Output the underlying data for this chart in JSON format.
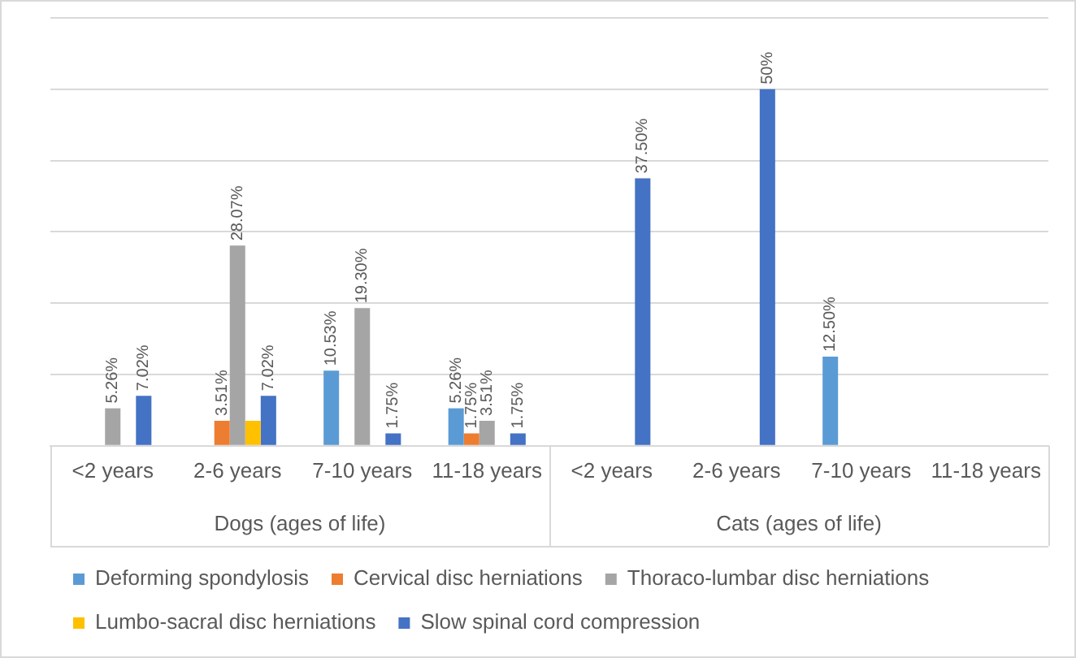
{
  "chart_data": {
    "type": "bar",
    "categories": [
      "<2 years",
      "2-6 years",
      "7-10 years",
      "11-18 years",
      "<2 years",
      "2-6 years",
      "7-10 years",
      "11-18 years"
    ],
    "annotations": [
      "Dogs (ages of life)",
      "Cats (ages of life)"
    ],
    "series": [
      {
        "name": "Deforming spondylosis",
        "color": "#5b9bd5",
        "values": [
          null,
          null,
          10.53,
          5.26,
          null,
          null,
          12.5,
          null
        ],
        "value_labels": [
          null,
          null,
          "10.53%",
          "5.26%",
          null,
          null,
          "12.50%",
          null
        ]
      },
      {
        "name": "Cervical disc herniations",
        "color": "#ed7d31",
        "values": [
          null,
          3.51,
          null,
          1.75,
          null,
          null,
          null,
          null
        ],
        "value_labels": [
          null,
          "3.51%",
          null,
          "1.75%",
          null,
          null,
          null,
          null
        ]
      },
      {
        "name": "Thoraco-lumbar disc herniations",
        "color": "#a5a5a5",
        "values": [
          5.26,
          28.07,
          19.3,
          3.51,
          null,
          null,
          null,
          null
        ],
        "value_labels": [
          "5.26%",
          "28.07%",
          "19.30%",
          "3.51%",
          null,
          null,
          null,
          null
        ]
      },
      {
        "name": "Lumbo-sacral disc herniations",
        "color": "#ffc000",
        "values": [
          null,
          3.51,
          null,
          null,
          null,
          null,
          null,
          null
        ],
        "value_labels": [
          null,
          null,
          null,
          null,
          null,
          null,
          null,
          null
        ]
      },
      {
        "name": "Slow spinal cord compression",
        "color": "#4472c4",
        "values": [
          7.02,
          7.02,
          1.75,
          1.75,
          37.5,
          50,
          null,
          null
        ],
        "value_labels": [
          "7.02%",
          "7.02%",
          "1.75%",
          "1.75%",
          "37.50%",
          "50%",
          null,
          null
        ]
      }
    ],
    "ylim": [
      0,
      60
    ],
    "yticks": [
      {
        "value": 0,
        "label": null
      },
      {
        "value": 10,
        "label": null
      },
      {
        "value": 20,
        "label": null
      },
      {
        "value": 30,
        "label": null
      },
      {
        "value": 40,
        "label": null
      },
      {
        "value": 50,
        "label": null
      },
      {
        "value": 60,
        "label": null
      }
    ],
    "grid": "y",
    "legend": "bottom",
    "tick_labels": "x"
  }
}
